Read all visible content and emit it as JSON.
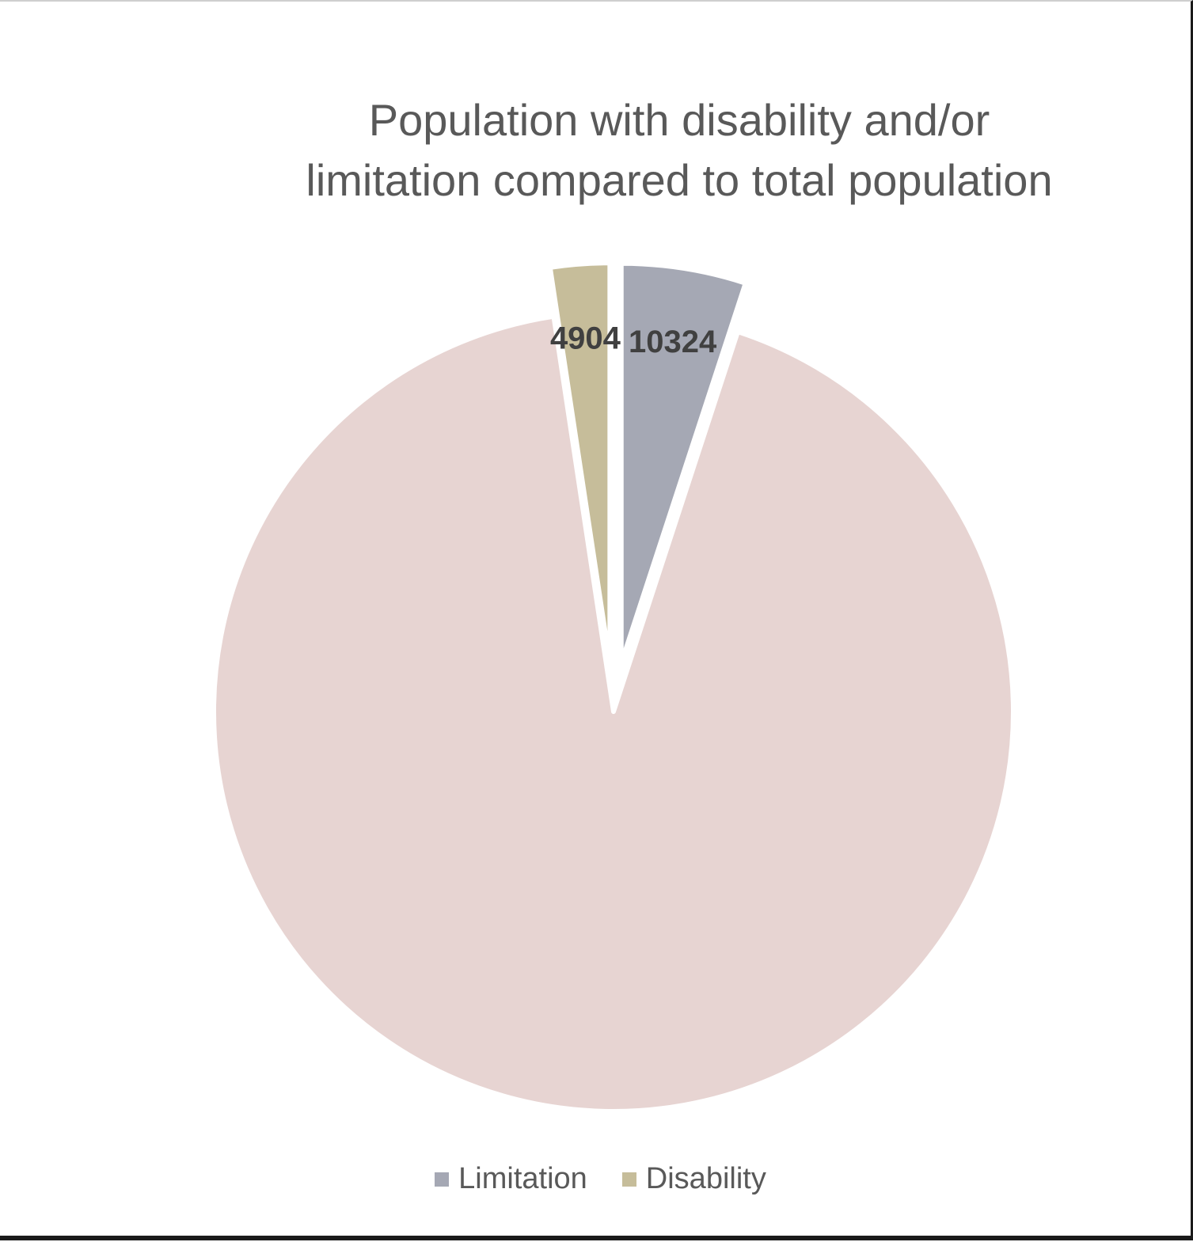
{
  "chart_data": {
    "type": "pie",
    "title": "Population with disability and/or limitation compared to total population",
    "title_lines": [
      "Population with disability and/or",
      "limitation compared to total population"
    ],
    "slices": [
      {
        "name": "Limitation",
        "value": 10324,
        "label": "10324",
        "color": "#a5a8b4",
        "exploded": true,
        "show_label": true
      },
      {
        "name": "",
        "value": 190000,
        "label": "",
        "color": "#e7d4d2",
        "exploded": false,
        "show_label": false
      },
      {
        "name": "Disability",
        "value": 4904,
        "label": "4904",
        "color": "#c6bd9a",
        "exploded": true,
        "show_label": true
      }
    ],
    "start_angle_deg": 0,
    "direction": "clockwise",
    "legend": {
      "position": "bottom",
      "items": [
        {
          "label": "Limitation",
          "color": "#a5a8b4"
        },
        {
          "label": "Disability",
          "color": "#c6bd9a"
        }
      ]
    }
  }
}
